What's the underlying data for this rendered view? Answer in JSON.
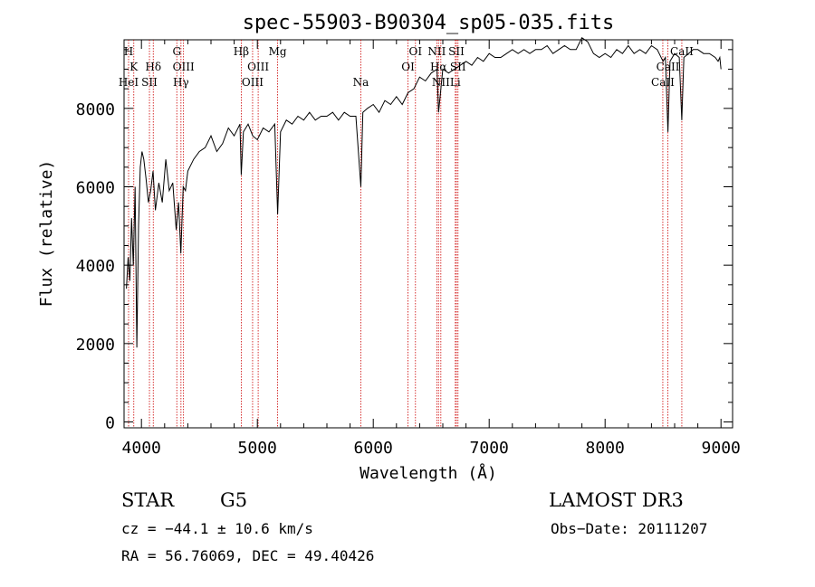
{
  "chart_data": {
    "type": "line",
    "title": "spec-55903-B90304_sp05-035.fits",
    "xlabel": "Wavelength (Å)",
    "ylabel": "Flux (relative)",
    "xlim": [
      3850,
      9100
    ],
    "ylim": [
      -150,
      9750
    ],
    "xticks": [
      4000,
      5000,
      6000,
      7000,
      8000,
      9000
    ],
    "xtick_labels": [
      "4000",
      "5000",
      "6000",
      "7000",
      "8000",
      "9000"
    ],
    "yticks": [
      0,
      2000,
      4000,
      6000,
      8000
    ],
    "ytick_labels": [
      "0",
      "2000",
      "4000",
      "6000",
      "8000"
    ],
    "grid": false,
    "line_color": "#000000",
    "marker_color": "#cc0000",
    "spectrum": {
      "name": "Flux",
      "x": [
        3870,
        3885,
        3900,
        3915,
        3930,
        3945,
        3960,
        3975,
        3990,
        4005,
        4020,
        4040,
        4060,
        4080,
        4100,
        4120,
        4150,
        4180,
        4210,
        4240,
        4270,
        4300,
        4320,
        4340,
        4360,
        4380,
        4400,
        4450,
        4500,
        4550,
        4600,
        4650,
        4700,
        4750,
        4800,
        4850,
        4861,
        4880,
        4920,
        4960,
        5000,
        5050,
        5100,
        5150,
        5175,
        5200,
        5250,
        5300,
        5350,
        5400,
        5450,
        5500,
        5550,
        5600,
        5650,
        5700,
        5750,
        5800,
        5850,
        5893,
        5910,
        5950,
        6000,
        6050,
        6100,
        6150,
        6200,
        6250,
        6300,
        6350,
        6400,
        6450,
        6500,
        6550,
        6563,
        6600,
        6650,
        6700,
        6750,
        6800,
        6850,
        6900,
        6950,
        7000,
        7050,
        7100,
        7150,
        7200,
        7250,
        7300,
        7350,
        7400,
        7450,
        7500,
        7550,
        7600,
        7650,
        7700,
        7750,
        7800,
        7850,
        7900,
        7950,
        8000,
        8050,
        8100,
        8150,
        8200,
        8250,
        8300,
        8350,
        8400,
        8450,
        8500,
        8520,
        8542,
        8560,
        8600,
        8640,
        8662,
        8680,
        8720,
        8760,
        8800,
        8850,
        8900,
        8950,
        8975,
        8990,
        9000
      ],
      "y": [
        3400,
        4200,
        3600,
        5200,
        4000,
        6000,
        1900,
        5000,
        6500,
        6900,
        6700,
        6200,
        5600,
        5900,
        6400,
        5400,
        6100,
        5600,
        6700,
        5900,
        6100,
        4900,
        5600,
        4300,
        6000,
        5900,
        6400,
        6700,
        6900,
        7000,
        7300,
        6900,
        7100,
        7500,
        7300,
        7600,
        6300,
        7400,
        7600,
        7300,
        7200,
        7500,
        7400,
        7600,
        5300,
        7400,
        7700,
        7600,
        7800,
        7700,
        7900,
        7700,
        7800,
        7800,
        7900,
        7700,
        7900,
        7800,
        7800,
        6000,
        7900,
        8000,
        8100,
        7900,
        8200,
        8100,
        8300,
        8100,
        8400,
        8500,
        8800,
        8700,
        8900,
        9000,
        7900,
        9000,
        8900,
        9000,
        9100,
        9200,
        9100,
        9300,
        9200,
        9400,
        9300,
        9300,
        9400,
        9500,
        9400,
        9500,
        9400,
        9500,
        9500,
        9600,
        9400,
        9500,
        9600,
        9500,
        9500,
        9800,
        9700,
        9400,
        9300,
        9400,
        9300,
        9500,
        9400,
        9600,
        9400,
        9500,
        9400,
        9600,
        9500,
        9200,
        9300,
        7400,
        9200,
        9400,
        9300,
        7700,
        9300,
        9400,
        9500,
        9500,
        9400,
        9400,
        9300,
        9200,
        9300,
        9000
      ]
    },
    "line_markers": [
      {
        "label": "H",
        "wavelength": 3889,
        "row": 1
      },
      {
        "label": "K",
        "wavelength": 3934,
        "row": 2
      },
      {
        "label": "HeI",
        "wavelength": 3889,
        "row": 3
      },
      {
        "label": "SII",
        "wavelength": 4069,
        "row": 3
      },
      {
        "label": "Hδ",
        "wavelength": 4102,
        "row": 2
      },
      {
        "label": "G",
        "wavelength": 4305,
        "row": 1
      },
      {
        "label": "OIII",
        "wavelength": 4363,
        "row": 2
      },
      {
        "label": "Hγ",
        "wavelength": 4341,
        "row": 3
      },
      {
        "label": "Hβ",
        "wavelength": 4861,
        "row": 1
      },
      {
        "label": "OIII",
        "wavelength": 5007,
        "row": 2
      },
      {
        "label": "OIII",
        "wavelength": 4959,
        "row": 3
      },
      {
        "label": "Mg",
        "wavelength": 5175,
        "row": 1
      },
      {
        "label": "Na",
        "wavelength": 5893,
        "row": 3
      },
      {
        "label": "OI",
        "wavelength": 6364,
        "row": 1
      },
      {
        "label": "OI",
        "wavelength": 6300,
        "row": 2
      },
      {
        "label": "NII",
        "wavelength": 6548,
        "row": 1
      },
      {
        "label": "SII",
        "wavelength": 6717,
        "row": 1
      },
      {
        "label": "Hα",
        "wavelength": 6563,
        "row": 2
      },
      {
        "label": "SII",
        "wavelength": 6731,
        "row": 2
      },
      {
        "label": "NII",
        "wavelength": 6583,
        "row": 3
      },
      {
        "label": "Li",
        "wavelength": 6708,
        "row": 3
      },
      {
        "label": "CaII",
        "wavelength": 8662,
        "row": 1
      },
      {
        "label": "CaII",
        "wavelength": 8542,
        "row": 2
      },
      {
        "label": "CaII",
        "wavelength": 8498,
        "row": 3
      }
    ]
  },
  "footer": {
    "object_class": "STAR",
    "subclass": "G5",
    "survey": "LAMOST DR3",
    "redshift": "cz = −44.1 ± 10.6 km/s",
    "obs_date": "Obs−Date: 20111207",
    "coordinates": "RA =  56.76069, DEC =  49.40426"
  }
}
